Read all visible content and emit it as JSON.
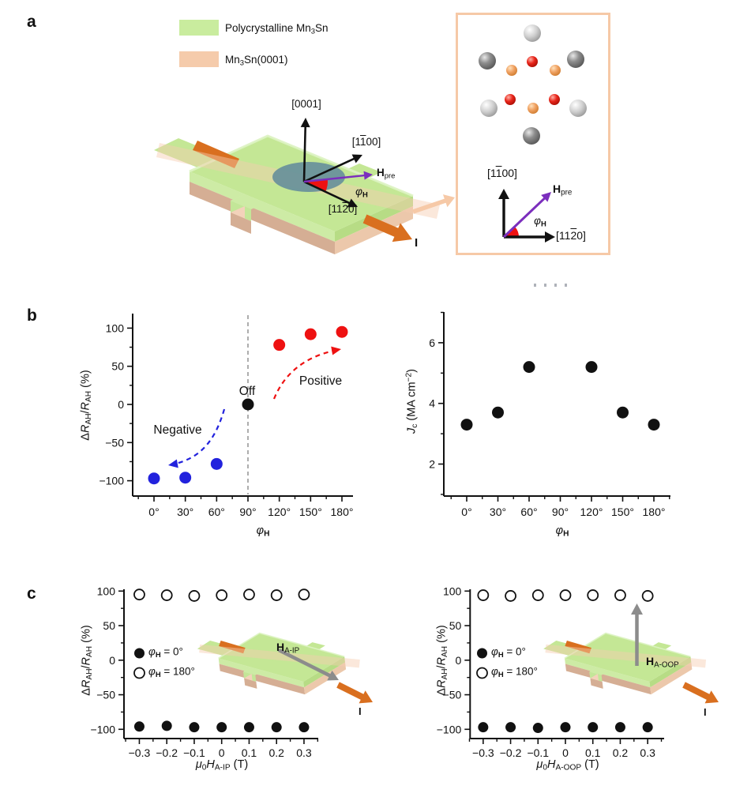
{
  "figure": {
    "panel_a_label": "a",
    "panel_b_label": "b",
    "panel_c_label": "c"
  },
  "colors": {
    "swatch_green": "#c9ec9e",
    "swatch_peach": "#f5cbab",
    "green_top": "#c4e795",
    "green_edge_highlight": "#ddf3c2",
    "green_side_light": "#cdeba5",
    "green_side": "#b7dc85",
    "green_stub_left": "#d6efb5",
    "green_stub_front": "#c3e698",
    "peach_light": "#f3d2ba",
    "peach_dark": "#d5ae94",
    "peach_mid": "#ecc8ab",
    "band": "#f6cdaf",
    "orange": "#d96f1f",
    "teal": "#68909b",
    "red": "#ee1111",
    "blue": "#2222dd",
    "purple": "#7b2ebd",
    "gray_arrow": "#8c8c8c",
    "inset_border": "#f6c9a7",
    "axis": "#111111",
    "guide": "#999999"
  },
  "panel_a": {
    "legend": [
      {
        "label": "Polycrystalline Mn_3_Sn"
      },
      {
        "label": "Mn_3_Sn(0001)"
      }
    ],
    "axis_0001": "[0001]",
    "axis_1100": "[1~1~00]",
    "axis_1120": "[11~2~0]",
    "h_pre": "!H!_pre_",
    "phi_h": "*φ*_!H!_",
    "current": "!I!",
    "inset": {
      "axis_1100": "[1~1~00]",
      "axis_1120": "[11~2~0]",
      "h_pre": "!H!_pre_",
      "phi_h": "*φ*_!H!_"
    }
  },
  "chart_data": [
    {
      "id": "b_left",
      "type": "scatter",
      "xlabel": "*φ*_!H!_",
      "ylabel": "Δ*R*_AH_/*R*_AH_ (%)",
      "x_tick_values": [
        0,
        30,
        60,
        90,
        120,
        150,
        180
      ],
      "x_tick_labels": [
        "0°",
        "30°",
        "60°",
        "90°",
        "120°",
        "150°",
        "180°"
      ],
      "y_tick_values": [
        100,
        50,
        0,
        -50,
        -100
      ],
      "y_tick_labels": [
        "100",
        "50",
        "0",
        "−50",
        "−100"
      ],
      "xlim": [
        -20,
        192
      ],
      "ylim": [
        -125,
        118
      ],
      "grid": false,
      "guide_line_x": 90,
      "series": [
        {
          "name": "negative",
          "color": "#2222dd",
          "marker": "filled",
          "points": [
            [
              0,
              -97
            ],
            [
              30,
              -96
            ],
            [
              60,
              -78
            ]
          ]
        },
        {
          "name": "off",
          "color": "#111111",
          "marker": "filled",
          "points": [
            [
              90,
              0
            ]
          ]
        },
        {
          "name": "positive",
          "color": "#ee1111",
          "marker": "filled",
          "points": [
            [
              120,
              78
            ],
            [
              150,
              92
            ],
            [
              180,
              95
            ]
          ]
        }
      ],
      "annotations": [
        "Negative",
        "Off",
        "Positive"
      ]
    },
    {
      "id": "b_right",
      "type": "scatter",
      "xlabel": "*φ*_!H!_",
      "ylabel": "*J*_c_ (MA cm^−2^)",
      "x_tick_values": [
        0,
        30,
        60,
        90,
        120,
        150,
        180
      ],
      "x_tick_labels": [
        "0°",
        "30°",
        "60°",
        "90°",
        "120°",
        "150°",
        "180°"
      ],
      "y_tick_values": [
        2,
        4,
        6
      ],
      "y_tick_labels": [
        "2",
        "4",
        "6"
      ],
      "xlim": [
        -20,
        196
      ],
      "ylim": [
        1,
        7
      ],
      "grid": false,
      "series": [
        {
          "name": "critical_current_density",
          "color": "#111111",
          "marker": "filled",
          "points": [
            [
              0,
              3.3
            ],
            [
              30,
              3.7
            ],
            [
              60,
              5.2
            ],
            [
              120,
              5.2
            ],
            [
              150,
              3.7
            ],
            [
              180,
              3.3
            ]
          ]
        }
      ]
    },
    {
      "id": "c_left",
      "type": "scatter",
      "xlabel": "*μ*_0_*H*_A-IP_ (T)",
      "ylabel": "Δ*R*_AH_/*R*_AH_ (%)",
      "x_tick_values": [
        -0.3,
        -0.2,
        -0.1,
        0,
        0.1,
        0.2,
        0.3
      ],
      "x_tick_labels": [
        "−0.3",
        "−0.2",
        "−0.1",
        "0",
        "0.1",
        "0.2",
        "0.3"
      ],
      "y_tick_values": [
        100,
        50,
        0,
        -50,
        -100
      ],
      "y_tick_labels": [
        "100",
        "50",
        "0",
        "−50",
        "−100"
      ],
      "xlim": [
        -0.36,
        0.35
      ],
      "ylim": [
        -113,
        103
      ],
      "grid": false,
      "legend": [
        {
          "marker": "filled",
          "label": "*φ*_!H!_ = 0°"
        },
        {
          "marker": "open",
          "label": "*φ*_!H!_ = 180°"
        }
      ],
      "series": [
        {
          "name": "phi_h_0",
          "color": "#111111",
          "marker": "filled",
          "points": [
            [
              -0.3,
              -96
            ],
            [
              -0.2,
              -95
            ],
            [
              -0.1,
              -97
            ],
            [
              0,
              -97
            ],
            [
              0.1,
              -97
            ],
            [
              0.2,
              -97
            ],
            [
              0.3,
              -97
            ]
          ]
        },
        {
          "name": "phi_h_180",
          "color": "#111111",
          "marker": "open",
          "points": [
            [
              -0.3,
              95
            ],
            [
              -0.2,
              94
            ],
            [
              -0.1,
              93
            ],
            [
              0,
              94
            ],
            [
              0.1,
              95
            ],
            [
              0.2,
              94
            ],
            [
              0.3,
              95
            ]
          ]
        }
      ],
      "inset": {
        "field_label": "!H!_A-IP_",
        "current_label": "!I!"
      }
    },
    {
      "id": "c_right",
      "type": "scatter",
      "xlabel": "*μ*_0_*H*_A-OOP_ (T)",
      "ylabel": "Δ*R*_AH_/*R*_AH_ (%)",
      "x_tick_values": [
        -0.3,
        -0.2,
        -0.1,
        0,
        0.1,
        0.2,
        0.3
      ],
      "x_tick_labels": [
        "−0.3",
        "−0.2",
        "−0.1",
        "0",
        "0.1",
        "0.2",
        "0.3"
      ],
      "y_tick_values": [
        100,
        50,
        0,
        -50,
        -100
      ],
      "y_tick_labels": [
        "100",
        "50",
        "0",
        "−50",
        "−100"
      ],
      "xlim": [
        -0.36,
        0.35
      ],
      "ylim": [
        -113,
        103
      ],
      "grid": false,
      "legend": [
        {
          "marker": "filled",
          "label": "*φ*_!H!_ = 0°"
        },
        {
          "marker": "open",
          "label": "*φ*_!H!_ = 180°"
        }
      ],
      "series": [
        {
          "name": "phi_h_0",
          "color": "#111111",
          "marker": "filled",
          "points": [
            [
              -0.3,
              -97
            ],
            [
              -0.2,
              -97
            ],
            [
              -0.1,
              -98
            ],
            [
              0,
              -97
            ],
            [
              0.1,
              -97
            ],
            [
              0.2,
              -97
            ],
            [
              0.3,
              -97
            ]
          ]
        },
        {
          "name": "phi_h_180",
          "color": "#111111",
          "marker": "open",
          "points": [
            [
              -0.3,
              94
            ],
            [
              -0.2,
              93
            ],
            [
              -0.1,
              94
            ],
            [
              0,
              94
            ],
            [
              0.1,
              94
            ],
            [
              0.2,
              94
            ],
            [
              0.3,
              93
            ]
          ]
        }
      ],
      "inset": {
        "field_label": "!H!_A-OOP_",
        "current_label": "!I!"
      }
    }
  ]
}
